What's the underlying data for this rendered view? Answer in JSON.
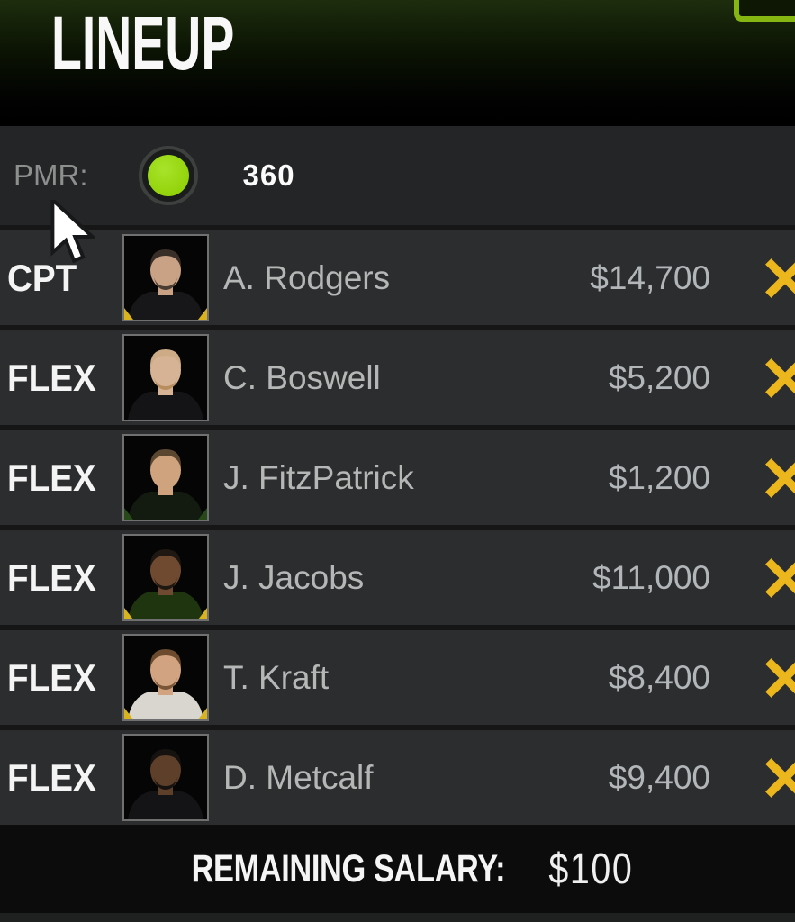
{
  "header": {
    "title": "LINEUP"
  },
  "pmr": {
    "label": "PMR:",
    "value": "360",
    "dot_color": "#93d30b",
    "dot_icon": "pmr-status-dot"
  },
  "lineup": {
    "players": [
      {
        "position": "CPT",
        "name": "A. Rodgers",
        "salary": "$14,700",
        "avatar": {
          "skin": "#c9a184",
          "hair": "#3a2f28",
          "beard": "#4a3c32",
          "jersey": "#17171a",
          "accent": "#d8b31d"
        }
      },
      {
        "position": "FLEX",
        "name": "C. Boswell",
        "salary": "$5,200",
        "avatar": {
          "skin": "#d6b394",
          "hair": "#cdab87",
          "beard": "#b98e5f",
          "jersey": "#141416",
          "accent": "transparent"
        }
      },
      {
        "position": "FLEX",
        "name": "J. FitzPatrick",
        "salary": "$1,200",
        "avatar": {
          "skin": "#cfa37e",
          "hair": "#5b4630",
          "beard": "transparent",
          "jersey": "#131a10",
          "accent": "#27491a"
        }
      },
      {
        "position": "FLEX",
        "name": "J. Jacobs",
        "salary": "$11,000",
        "avatar": {
          "skin": "#6f4a30",
          "hair": "#1f1812",
          "beard": "#1f1812",
          "jersey": "#1e3510",
          "accent": "#d8b31d"
        }
      },
      {
        "position": "FLEX",
        "name": "T. Kraft",
        "salary": "$8,400",
        "avatar": {
          "skin": "#d2a380",
          "hair": "#6b4a2e",
          "beard": "#7a5636",
          "jersey": "#d8d6ce",
          "accent": "#d8b31d"
        }
      },
      {
        "position": "FLEX",
        "name": "D. Metcalf",
        "salary": "$9,400",
        "avatar": {
          "skin": "#5d3f2a",
          "hair": "#161210",
          "beard": "#161210",
          "jersey": "#141416",
          "accent": "transparent"
        }
      }
    ],
    "remove_icon": "x-icon",
    "remove_color": "#ecb71d"
  },
  "footer": {
    "remaining_salary_label": "REMAINING SALARY:",
    "remaining_salary_value": "$100"
  },
  "colors": {
    "row_background": "#2c2d2e",
    "pmr_bar_background": "#242526",
    "header_green": "#1d2d0d",
    "corner_accent_green": "#85b612",
    "text_gray": "#b5b7b7",
    "text_white": "#f5f5f5"
  }
}
